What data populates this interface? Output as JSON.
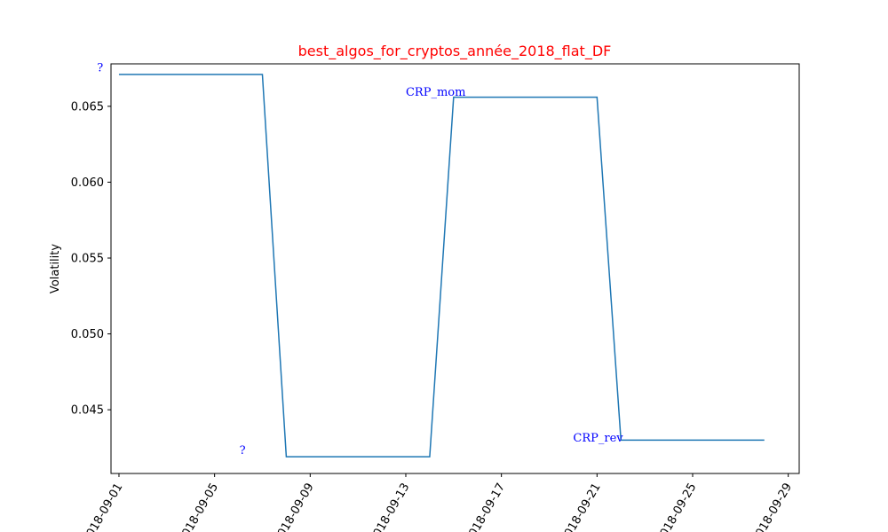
{
  "chart_data": {
    "type": "line",
    "title": "best_algos_for_cryptos_année_2018_flat_DF",
    "title_color": "#ff0000",
    "xlabel": "",
    "ylabel": "Volatility",
    "line_color": "#1f77b4",
    "annotation_color": "#0000ff",
    "grid": false,
    "x_tick_labels": [
      "2018-09-01",
      "2018-09-05",
      "2018-09-09",
      "2018-09-13",
      "2018-09-17",
      "2018-09-21",
      "2018-09-25",
      "2018-09-29"
    ],
    "y_tick_labels": [
      "0.045",
      "0.050",
      "0.055",
      "0.060",
      "0.065"
    ],
    "xlim": [
      "2018-08-31T16:00",
      "2018-09-29T11:00"
    ],
    "ylim": [
      0.0408,
      0.0678
    ],
    "series": [
      {
        "x": [
          "2018-09-01",
          "2018-09-02",
          "2018-09-03",
          "2018-09-04",
          "2018-09-05",
          "2018-09-06",
          "2018-09-07",
          "2018-09-08",
          "2018-09-09",
          "2018-09-10",
          "2018-09-11",
          "2018-09-12",
          "2018-09-13",
          "2018-09-14",
          "2018-09-15",
          "2018-09-16",
          "2018-09-17",
          "2018-09-18",
          "2018-09-19",
          "2018-09-20",
          "2018-09-21",
          "2018-09-22",
          "2018-09-23",
          "2018-09-24",
          "2018-09-25",
          "2018-09-26",
          "2018-09-27",
          "2018-09-28"
        ],
        "y": [
          0.0671,
          0.0671,
          0.0671,
          0.0671,
          0.0671,
          0.0671,
          0.0671,
          0.0419,
          0.0419,
          0.0419,
          0.0419,
          0.0419,
          0.0419,
          0.0419,
          0.0656,
          0.0656,
          0.0656,
          0.0656,
          0.0656,
          0.0656,
          0.0656,
          0.043,
          0.043,
          0.043,
          0.043,
          0.043,
          0.043,
          0.043
        ]
      }
    ],
    "annotations": [
      {
        "text": "?",
        "x": "2018-08-31T02:00",
        "y": 0.0673
      },
      {
        "text": "?",
        "x": "2018-09-06T01:00",
        "y": 0.0421
      },
      {
        "text": "CRP_mom",
        "x": "2018-09-13T00:00",
        "y": 0.0657
      },
      {
        "text": "CRP_rev",
        "x": "2018-09-20T00:00",
        "y": 0.0429
      }
    ]
  }
}
